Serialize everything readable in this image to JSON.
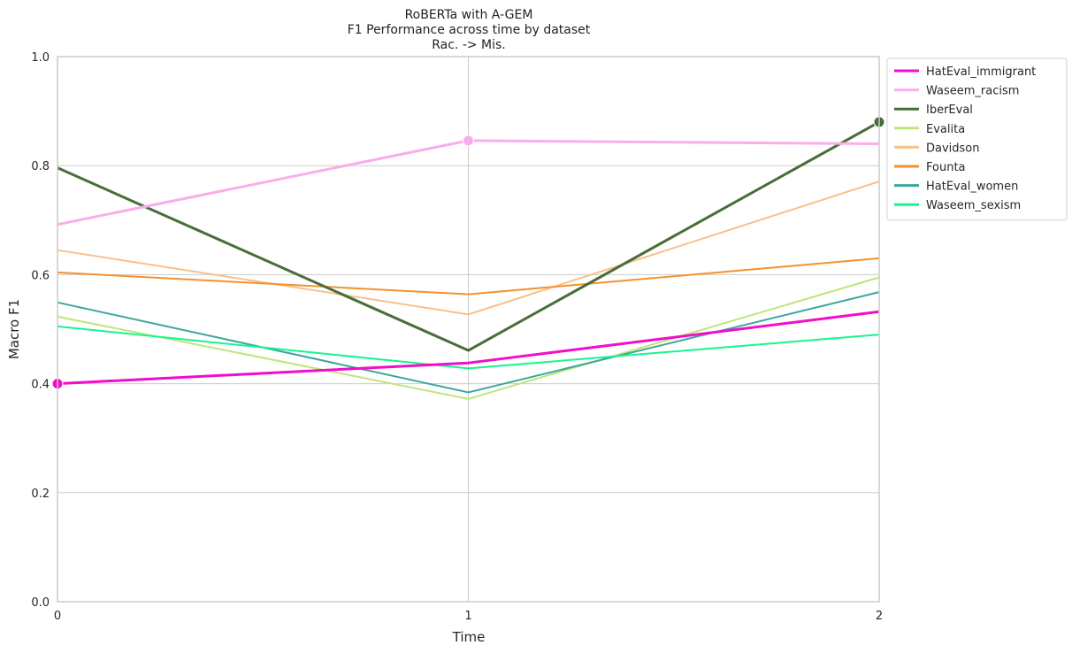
{
  "chart_data": {
    "type": "line",
    "title_lines": [
      "RoBERTa with A-GEM",
      "F1 Performance across time by dataset",
      "Rac. -> Mis."
    ],
    "xlabel": "Time",
    "ylabel": "Macro F1",
    "x": [
      0,
      1,
      2
    ],
    "xticks": [
      "0",
      "1",
      "2"
    ],
    "yticks": [
      "0.0",
      "0.2",
      "0.4",
      "0.6",
      "0.8",
      "1.0"
    ],
    "xlim": [
      0,
      2
    ],
    "ylim": [
      0,
      1
    ],
    "grid": true,
    "legend_position": "outside-right",
    "series": [
      {
        "name": "HatEval_immigrant",
        "color": "#f20ccb",
        "values": [
          0.4,
          0.438,
          0.532
        ],
        "thick": true,
        "marker_index": 0
      },
      {
        "name": "Waseem_racism",
        "color": "#f8aeea",
        "values": [
          0.692,
          0.846,
          0.84
        ],
        "thick": true,
        "marker_index": 1
      },
      {
        "name": "IberEval",
        "color": "#476e38",
        "values": [
          0.796,
          0.461,
          0.88
        ],
        "thick": true,
        "marker_index": 2
      },
      {
        "name": "Evalita",
        "color": "#bfe57b",
        "values": [
          0.523,
          0.372,
          0.595
        ],
        "thick": false,
        "marker_index": null
      },
      {
        "name": "Davidson",
        "color": "#fbbf8a",
        "values": [
          0.645,
          0.527,
          0.771
        ],
        "thick": false,
        "marker_index": null
      },
      {
        "name": "Founta",
        "color": "#f5912c",
        "values": [
          0.604,
          0.564,
          0.63
        ],
        "thick": false,
        "marker_index": null
      },
      {
        "name": "HatEval_women",
        "color": "#3ba79c",
        "values": [
          0.549,
          0.384,
          0.568
        ],
        "thick": false,
        "marker_index": null
      },
      {
        "name": "Waseem_sexism",
        "color": "#16f58f",
        "values": [
          0.505,
          0.428,
          0.49
        ],
        "thick": false,
        "marker_index": null
      }
    ]
  }
}
